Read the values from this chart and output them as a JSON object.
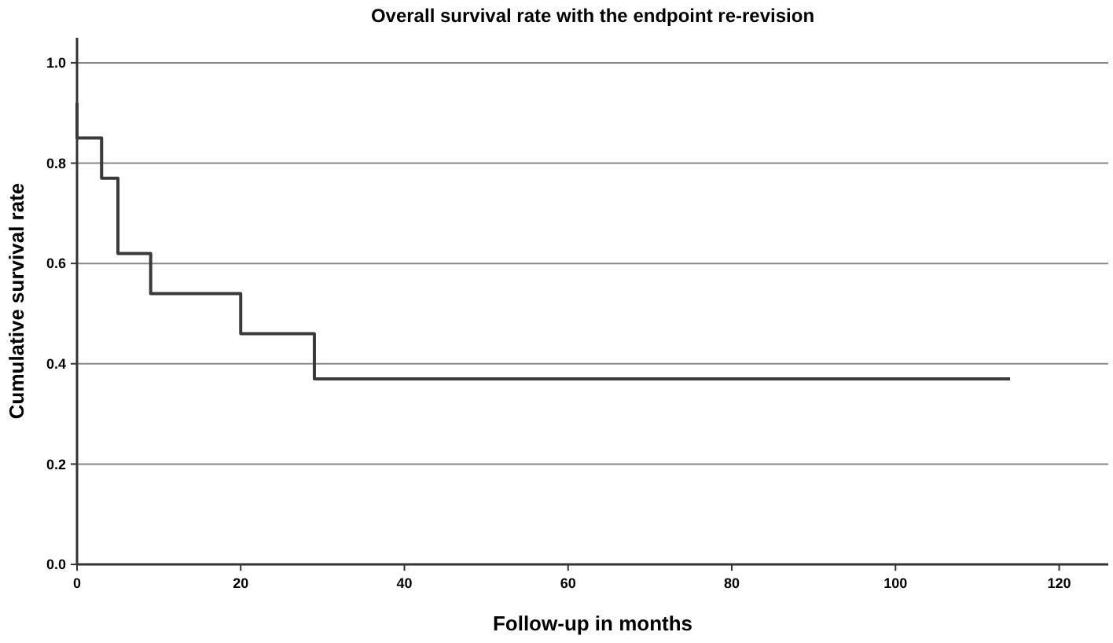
{
  "chart_data": {
    "type": "step",
    "title": "Overall survival rate with the endpoint re-revision",
    "xlabel": "Follow-up in months",
    "ylabel": "Cumulative survival rate",
    "series": [
      {
        "color": "#3a3a3a",
        "x": [
          0,
          0,
          3,
          5,
          9,
          20,
          29,
          114
        ],
        "values": [
          0.92,
          0.85,
          0.77,
          0.62,
          0.54,
          0.46,
          0.37,
          0.37
        ]
      }
    ],
    "xlim": [
      0,
      126
    ],
    "xticks": [
      0,
      20,
      40,
      60,
      80,
      100,
      120
    ],
    "ylim": [
      0,
      1.05
    ],
    "yticks": [
      {
        "value": 0,
        "label": "0.0"
      },
      {
        "value": 0.2,
        "label": "0.2"
      },
      {
        "value": 0.4,
        "label": "0.4"
      },
      {
        "value": 0.6,
        "label": "0.6"
      },
      {
        "value": 0.8,
        "label": "0.8"
      },
      {
        "value": 1,
        "label": "1.0"
      }
    ],
    "grid": "y"
  }
}
